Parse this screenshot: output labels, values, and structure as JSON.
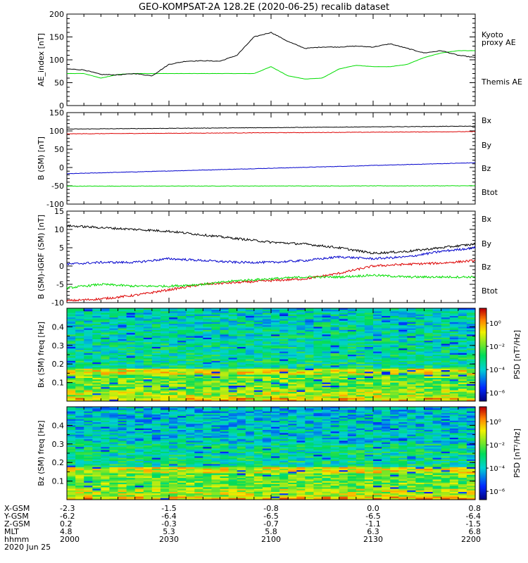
{
  "chart_data": [
    {
      "type": "line",
      "title": "GEO-KOMPSAT-2A 128.2E (2020-06-25) recalib dataset",
      "ylabel": "AE_index [nT]",
      "ylim": [
        0,
        200
      ],
      "yticks": [
        "0",
        "50",
        "100",
        "150",
        "200"
      ],
      "x": [
        "2000",
        "2005",
        "2010",
        "2015",
        "2020",
        "2025",
        "2030",
        "2035",
        "2040",
        "2045",
        "2050",
        "2055",
        "2100",
        "2105",
        "2110",
        "2115",
        "2120",
        "2125",
        "2130",
        "2135",
        "2140",
        "2145",
        "2150",
        "2155",
        "2200"
      ],
      "series": [
        {
          "name": "Themis AE",
          "color": "#000000",
          "values": [
            80,
            78,
            68,
            67,
            70,
            65,
            90,
            97,
            98,
            97,
            110,
            150,
            160,
            140,
            125,
            128,
            128,
            130,
            128,
            135,
            125,
            115,
            120,
            110,
            105
          ]
        },
        {
          "name": "Kyoto proxy AE",
          "color": "#00dd00",
          "values": [
            70,
            70,
            60,
            68,
            70,
            70,
            70,
            70,
            70,
            70,
            70,
            70,
            85,
            65,
            58,
            60,
            80,
            88,
            85,
            85,
            90,
            105,
            115,
            120,
            120
          ]
        }
      ],
      "legend": [
        {
          "label": "Kyoto",
          "color": "#00dd00"
        },
        {
          "label": "proxy AE",
          "color": "#00dd00"
        },
        {
          "label": "Themis AE",
          "color": "#000000"
        }
      ]
    },
    {
      "type": "line",
      "ylabel": "B (SM) [nT]",
      "ylim": [
        -100,
        150
      ],
      "yticks": [
        "-100",
        "-50",
        "0",
        "50",
        "100",
        "150"
      ],
      "series": [
        {
          "name": "Bx",
          "color": "#0000cc",
          "start": -17,
          "end": 13
        },
        {
          "name": "By",
          "color": "#00dd00",
          "start": -51,
          "end": -50
        },
        {
          "name": "Bz",
          "color": "#dd0000",
          "start": 92,
          "end": 98
        },
        {
          "name": "Btot",
          "color": "#000000",
          "start": 105,
          "end": 113
        }
      ],
      "legend": [
        {
          "label": "Bx",
          "color": "#0000cc"
        },
        {
          "label": "By",
          "color": "#00dd00"
        },
        {
          "label": "Bz",
          "color": "#dd0000"
        },
        {
          "label": "Btot",
          "color": "#000000"
        }
      ]
    },
    {
      "type": "line",
      "ylabel": "B (SM)-IGRF (SM) [nT]",
      "ylim": [
        -10,
        15
      ],
      "yticks": [
        "-10",
        "-5",
        "0",
        "5",
        "10",
        "15"
      ],
      "x": [
        "2000",
        "2010",
        "2020",
        "2030",
        "2040",
        "2050",
        "2100",
        "2110",
        "2120",
        "2130",
        "2140",
        "2150",
        "2200"
      ],
      "series": [
        {
          "name": "Bx",
          "color": "#0000cc",
          "values": [
            0.5,
            1,
            1,
            2,
            1.5,
            1,
            1,
            1.5,
            2.5,
            2,
            2.5,
            4,
            5
          ]
        },
        {
          "name": "By",
          "color": "#00dd00",
          "values": [
            -6,
            -5,
            -5.5,
            -5.5,
            -5,
            -4,
            -3.5,
            -3,
            -3,
            -2.5,
            -3,
            -3,
            -3
          ]
        },
        {
          "name": "Bz",
          "color": "#dd0000",
          "values": [
            -9.5,
            -9,
            -8,
            -6.5,
            -5,
            -4.5,
            -4,
            -3.5,
            -2,
            0,
            0.5,
            0.8,
            1.5
          ]
        },
        {
          "name": "Btot",
          "color": "#000000",
          "values": [
            11,
            10.5,
            10,
            9.5,
            8.5,
            7.5,
            6.5,
            6,
            5,
            3.5,
            4,
            5,
            6
          ]
        }
      ],
      "legend": [
        {
          "label": "Bx",
          "color": "#0000cc"
        },
        {
          "label": "By",
          "color": "#00dd00"
        },
        {
          "label": "Bz",
          "color": "#dd0000"
        },
        {
          "label": "Btot",
          "color": "#000000"
        }
      ]
    },
    {
      "type": "heatmap",
      "ylabel": "Bx (SM) freq [Hz]",
      "yticks": [
        "0.1",
        "0.2",
        "0.3",
        "0.4"
      ],
      "ylim": [
        0,
        0.5
      ],
      "colorbar_label": "PSD [nT²/Hz]",
      "colorbar_ticks": [
        "10⁰",
        "10⁻²",
        "10⁻⁴",
        "10⁻⁶"
      ]
    },
    {
      "type": "heatmap",
      "ylabel": "Bz (SM) freq [Hz]",
      "yticks": [
        "0.1",
        "0.2",
        "0.3",
        "0.4"
      ],
      "ylim": [
        0,
        0.5
      ],
      "colorbar_label": "PSD [nT²/Hz]",
      "colorbar_ticks": [
        "10⁰",
        "10⁻²",
        "10⁻⁴",
        "10⁻⁶"
      ]
    }
  ],
  "ephemeris": {
    "row_labels": [
      "X-GSM",
      "Y-GSM",
      "Z-GSM",
      "MLT",
      "hhmm",
      "2020 Jun 25"
    ],
    "columns": [
      [
        "-2.3",
        "-6.2",
        "0.2",
        "4.8",
        "2000"
      ],
      [
        "-1.5",
        "-6.4",
        "-0.3",
        "5.3",
        "2030"
      ],
      [
        "-0.8",
        "-6.5",
        "-0.7",
        "5.8",
        "2100"
      ],
      [
        "0.0",
        "-6.5",
        "-1.1",
        "6.3",
        "2130"
      ],
      [
        "0.8",
        "-6.4",
        "-1.5",
        "6.8",
        "2200"
      ]
    ]
  }
}
